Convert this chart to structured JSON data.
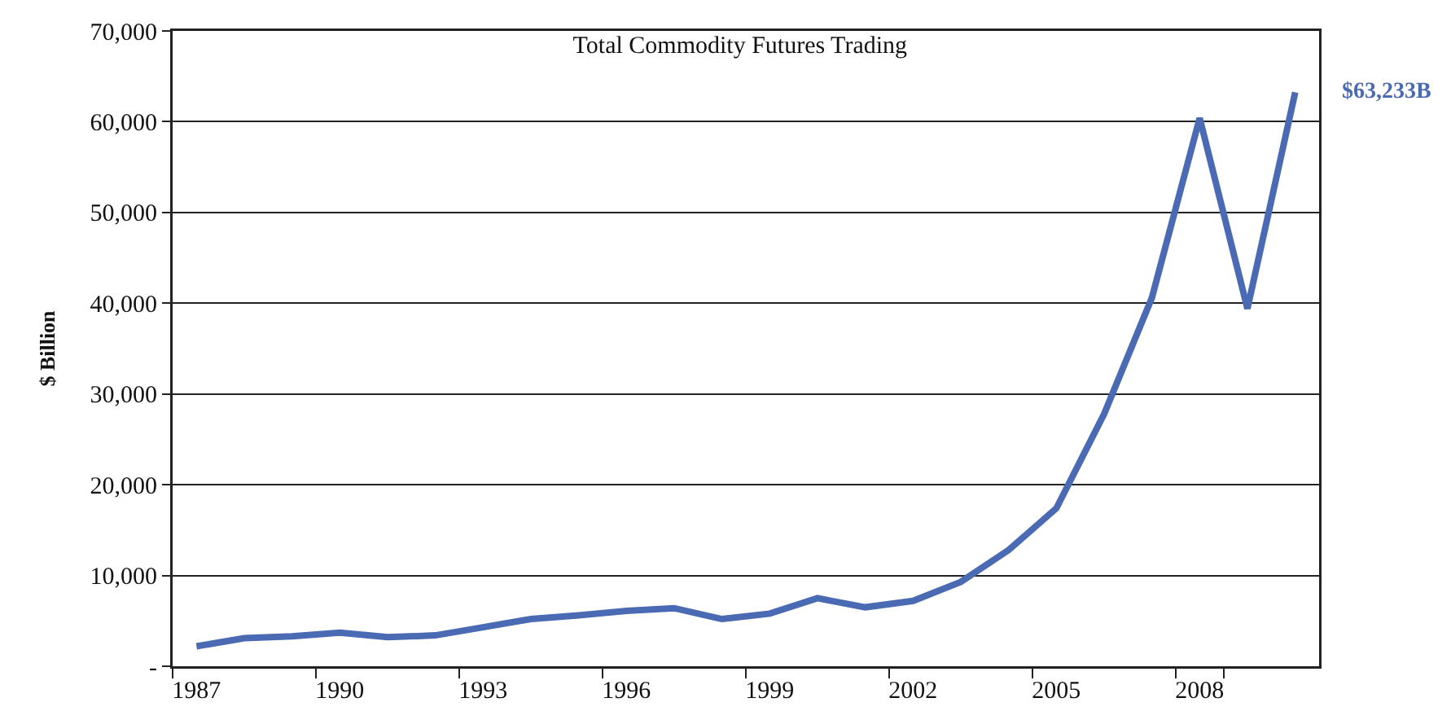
{
  "chart_data": {
    "type": "line",
    "title": "Total Commodity Futures Trading",
    "ylabel": "$ Billion",
    "categories": [
      "1987",
      null,
      null,
      "1990",
      null,
      null,
      "1993",
      null,
      null,
      "1996",
      null,
      null,
      "1999",
      null,
      null,
      "2002",
      null,
      null,
      "2005",
      null,
      null,
      "2008",
      null,
      null
    ],
    "series": [
      {
        "color": "#4a6ab3",
        "values": [
          2200,
          3100,
          3300,
          3700,
          3200,
          3400,
          4300,
          5200,
          5600,
          6100,
          6400,
          5200,
          5800,
          7500,
          6500,
          7200,
          9300,
          12800,
          17400,
          27800,
          40600,
          60400,
          39400,
          63233
        ]
      }
    ],
    "ylim": [
      0,
      70000
    ],
    "yticks": [
      {
        "value": 0,
        "label": "-"
      },
      {
        "value": 10000,
        "label": "10,000"
      },
      {
        "value": 20000,
        "label": "20,000"
      },
      {
        "value": 30000,
        "label": "30,000"
      },
      {
        "value": 40000,
        "label": "40,000"
      },
      {
        "value": 50000,
        "label": "50,000"
      },
      {
        "value": 60000,
        "label": "60,000"
      },
      {
        "value": 70000,
        "label": "70,000"
      }
    ],
    "annotations": [
      "$63,233B"
    ],
    "grid": "y",
    "marker": "none",
    "line_style": "solid"
  }
}
